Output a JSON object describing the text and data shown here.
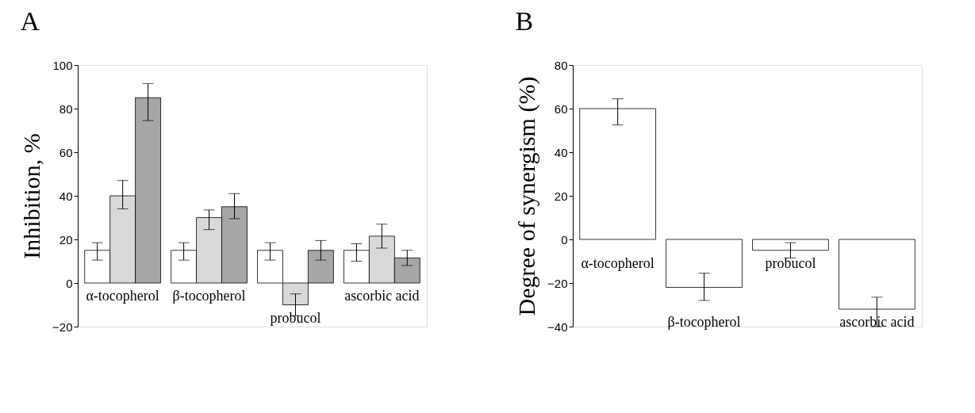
{
  "chart_data": [
    {
      "type": "bar",
      "title": "A",
      "ylabel": "Inhibition, %",
      "categories": [
        "α-tocopherol",
        "β-tocopherol",
        "probucol",
        "ascorbic acid"
      ],
      "ylim": [
        -20,
        100
      ],
      "yticks": [
        -20,
        0,
        20,
        40,
        60,
        80,
        100
      ],
      "tick_labels": "y",
      "grid": false,
      "legend": false,
      "series": [
        {
          "color": "#ffffff",
          "values": [
            15,
            15,
            15,
            15
          ],
          "errors": [
            [
              10.5,
              18.5
            ],
            [
              10.5,
              18.5
            ],
            [
              10.5,
              18.5
            ],
            [
              10,
              18
            ]
          ]
        },
        {
          "color": "#d9d9d9",
          "values": [
            40,
            30,
            -10,
            21.5
          ],
          "errors": [
            [
              34,
              47
            ],
            [
              24.5,
              33.5
            ],
            [
              -15,
              -5
            ],
            [
              16,
              27
            ]
          ]
        },
        {
          "color": "#a6a6a6",
          "values": [
            85,
            35,
            15,
            11.5
          ],
          "errors": [
            [
              74.5,
              91.5
            ],
            [
              29.5,
              41
            ],
            [
              10.5,
              19.5
            ],
            [
              8,
              15
            ]
          ]
        }
      ]
    },
    {
      "type": "bar",
      "title": "B",
      "ylabel": "Degree of synergism (%)",
      "categories": [
        "α-tocopherol",
        "β-tocopherol",
        "probucol",
        "ascorbic acid"
      ],
      "ylim": [
        -40,
        80
      ],
      "yticks": [
        -40,
        -20,
        0,
        20,
        40,
        60,
        80
      ],
      "tick_labels": "y",
      "grid": false,
      "legend": false,
      "color": "#ffffff",
      "values": [
        60,
        -22,
        -5,
        -32
      ],
      "errors": [
        [
          52.5,
          64.5
        ],
        [
          -28,
          -15.5
        ],
        [
          -8.5,
          -1.5
        ],
        [
          -40,
          -26.5
        ]
      ]
    }
  ]
}
